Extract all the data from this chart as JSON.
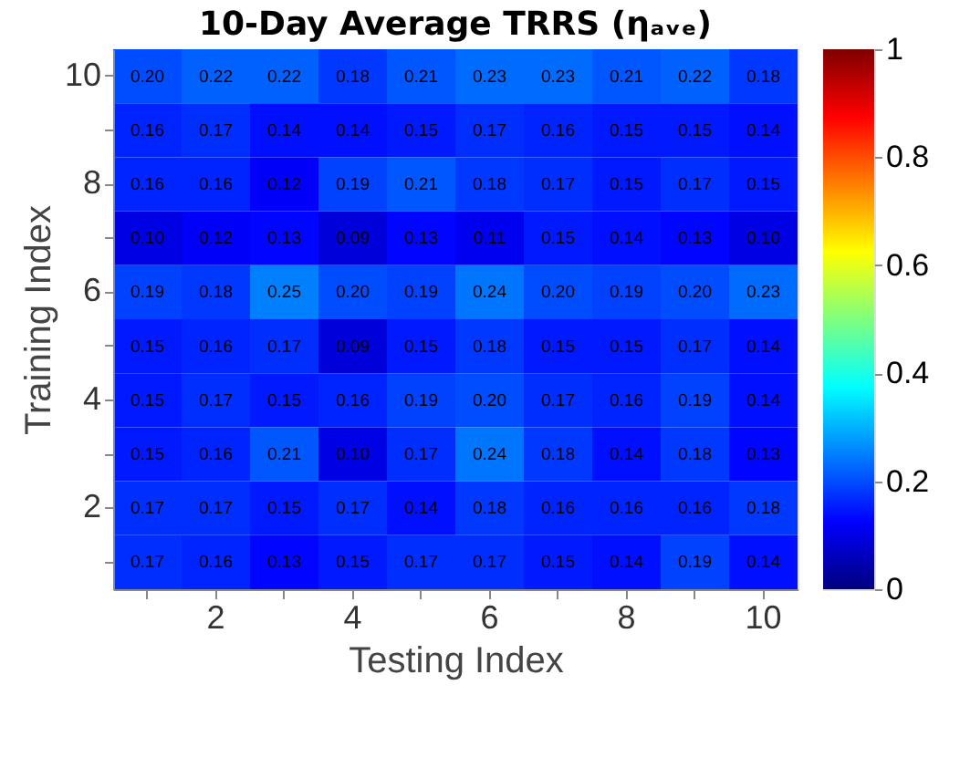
{
  "chart_data": {
    "type": "heatmap",
    "title": "10-Day Average TRRS (ηₐᵥₑ)",
    "xlabel": "Testing Index",
    "ylabel": "Training Index",
    "categories": [
      null,
      "2",
      null,
      "4",
      null,
      "6",
      null,
      "8",
      null,
      "10"
    ],
    "y_categories": [
      "10",
      null,
      "8",
      null,
      "6",
      null,
      "4",
      null,
      "2",
      null
    ],
    "cells": [
      [
        0.2,
        0.22,
        0.22,
        0.18,
        0.21,
        0.23,
        0.23,
        0.21,
        0.22,
        0.18
      ],
      [
        0.16,
        0.17,
        0.14,
        0.14,
        0.15,
        0.17,
        0.16,
        0.15,
        0.15,
        0.14
      ],
      [
        0.16,
        0.16,
        0.12,
        0.19,
        0.21,
        0.18,
        0.17,
        0.15,
        0.17,
        0.15
      ],
      [
        0.1,
        0.12,
        0.13,
        0.09,
        0.13,
        0.11,
        0.15,
        0.14,
        0.13,
        0.1
      ],
      [
        0.19,
        0.18,
        0.25,
        0.2,
        0.19,
        0.24,
        0.2,
        0.19,
        0.2,
        0.23
      ],
      [
        0.15,
        0.16,
        0.17,
        0.09,
        0.15,
        0.18,
        0.15,
        0.15,
        0.17,
        0.14
      ],
      [
        0.15,
        0.17,
        0.15,
        0.16,
        0.19,
        0.2,
        0.17,
        0.16,
        0.19,
        0.14
      ],
      [
        0.15,
        0.16,
        0.21,
        0.1,
        0.17,
        0.24,
        0.18,
        0.14,
        0.18,
        0.13
      ],
      [
        0.17,
        0.17,
        0.15,
        0.17,
        0.14,
        0.18,
        0.16,
        0.16,
        0.16,
        0.18
      ],
      [
        0.17,
        0.16,
        0.13,
        0.15,
        0.17,
        0.17,
        0.15,
        0.14,
        0.19,
        0.14
      ]
    ],
    "cell_labels": [
      [
        "0.20",
        "0.22",
        "0.22",
        "0.18",
        "0.21",
        "0.23",
        "0.23",
        "0.21",
        "0.22",
        "0.18"
      ],
      [
        "0.16",
        "0.17",
        "0.14",
        "0.14",
        "0.15",
        "0.17",
        "0.16",
        "0.15",
        "0.15",
        "0.14"
      ],
      [
        "0.16",
        "0.16",
        "0.12",
        "0.19",
        "0.21",
        "0.18",
        "0.17",
        "0.15",
        "0.17",
        "0.15"
      ],
      [
        "0.10",
        "0.12",
        "0.13",
        "0.09",
        "0.13",
        "0.11",
        "0.15",
        "0.14",
        "0.13",
        "0.10"
      ],
      [
        "0.19",
        "0.18",
        "0.25",
        "0.20",
        "0.19",
        "0.24",
        "0.20",
        "0.19",
        "0.20",
        "0.23"
      ],
      [
        "0.15",
        "0.16",
        "0.17",
        "0.09",
        "0.15",
        "0.18",
        "0.15",
        "0.15",
        "0.17",
        "0.14"
      ],
      [
        "0.15",
        "0.17",
        "0.15",
        "0.16",
        "0.19",
        "0.20",
        "0.17",
        "0.16",
        "0.19",
        "0.14"
      ],
      [
        "0.15",
        "0.16",
        "0.21",
        "0.10",
        "0.17",
        "0.24",
        "0.18",
        "0.14",
        "0.18",
        "0.13"
      ],
      [
        "0.17",
        "0.17",
        "0.15",
        "0.17",
        "0.14",
        "0.18",
        "0.16",
        "0.16",
        "0.16",
        "0.18"
      ],
      [
        "0.17",
        "0.16",
        "0.13",
        "0.15",
        "0.17",
        "0.17",
        "0.15",
        "0.14",
        "0.19",
        "0.14"
      ]
    ],
    "clim": [
      0,
      1
    ],
    "cticks": [
      0,
      0.2,
      0.4,
      0.6,
      0.8,
      1
    ],
    "data_labels": true
  }
}
